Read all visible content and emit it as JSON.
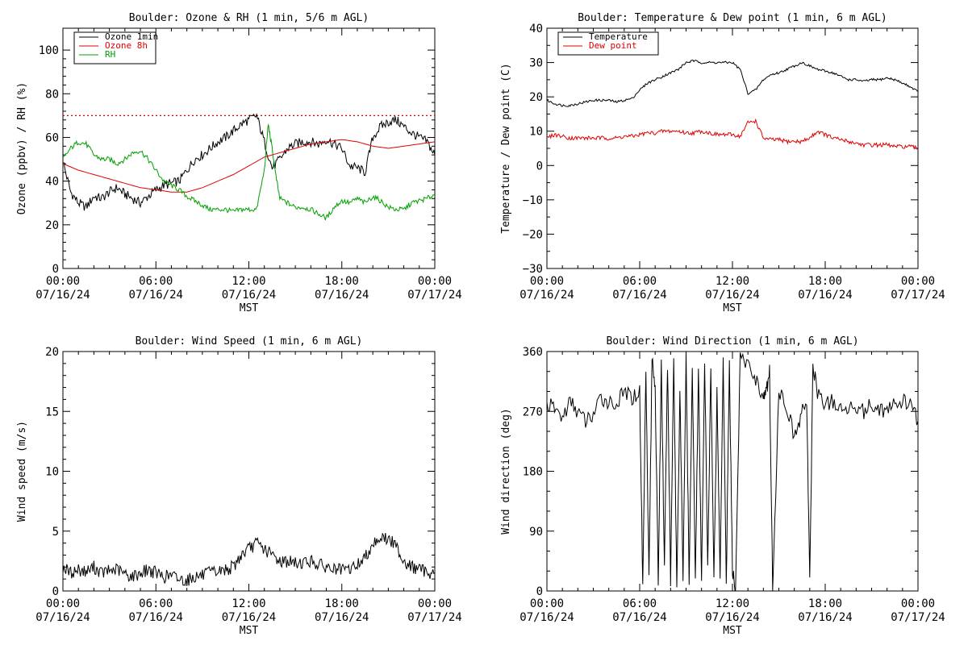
{
  "chart_data": [
    {
      "type": "line",
      "title": "Boulder: Ozone & RH (1 min, 5/6 m AGL)",
      "xlabel": "MST",
      "ylabel": "Ozone (ppbv) / RH (%)",
      "xlim": [
        "07/16/24 00:00",
        "07/17/24 00:00"
      ],
      "ylim": [
        0,
        110
      ],
      "x_ticks": [
        [
          "00:00",
          "07/16/24"
        ],
        [
          "06:00",
          "07/16/24"
        ],
        [
          "12:00",
          "07/16/24"
        ],
        [
          "18:00",
          "07/16/24"
        ],
        [
          "00:00",
          "07/17/24"
        ]
      ],
      "y_ticks": [
        "0",
        "20",
        "40",
        "60",
        "80",
        "100"
      ],
      "legend_position": "top-left",
      "reference_line": {
        "y": 70,
        "style": "dotted",
        "color": "#e00000"
      },
      "series": [
        {
          "name": "Ozone 1min",
          "color": "#000000",
          "x_hours": [
            0,
            0.5,
            1,
            1.5,
            2,
            2.5,
            3,
            3.5,
            4,
            4.5,
            5,
            5.5,
            6,
            6.5,
            7,
            7.5,
            8,
            8.5,
            9,
            9.5,
            10,
            10.5,
            11,
            11.5,
            12,
            12.5,
            13,
            13.5,
            14,
            14.5,
            15,
            15.5,
            16,
            16.5,
            17,
            17.5,
            18,
            18.5,
            19,
            19.5,
            20,
            20.5,
            21,
            21.5,
            22,
            22.5,
            23,
            23.5,
            24
          ],
          "values": [
            49,
            35,
            30,
            28,
            33,
            32,
            35,
            37,
            34,
            32,
            30,
            33,
            36,
            38,
            39,
            40,
            45,
            50,
            52,
            55,
            58,
            60,
            63,
            66,
            68,
            70,
            58,
            46,
            50,
            55,
            57,
            58,
            58,
            57,
            59,
            57,
            55,
            47,
            46,
            44,
            60,
            65,
            67,
            68,
            65,
            62,
            60,
            58,
            52
          ]
        },
        {
          "name": "Ozone 8h",
          "color": "#e00000",
          "x_hours": [
            0,
            1,
            2,
            3,
            4,
            5,
            6,
            7,
            8,
            9,
            10,
            11,
            12,
            13,
            14,
            15,
            16,
            17,
            18,
            19,
            20,
            21,
            22,
            23,
            24
          ],
          "values": [
            48,
            45,
            43,
            41,
            39,
            37,
            36,
            35,
            35,
            37,
            40,
            43,
            47,
            51,
            53,
            55,
            57,
            58,
            59,
            58,
            56,
            55,
            56,
            57,
            58
          ]
        },
        {
          "name": "RH",
          "color": "#00a000",
          "x_hours": [
            0,
            0.5,
            1,
            1.5,
            2,
            2.5,
            3,
            3.5,
            4,
            4.5,
            5,
            5.5,
            6,
            6.5,
            7,
            7.5,
            8,
            8.5,
            9,
            9.5,
            10,
            10.5,
            11,
            11.5,
            12,
            12.5,
            13,
            13.25,
            13.5,
            13.75,
            14,
            14.5,
            15,
            15.5,
            16,
            16.5,
            17,
            17.5,
            18,
            18.5,
            19,
            19.5,
            20,
            20.5,
            21,
            21.5,
            22,
            22.5,
            23,
            23.5,
            24
          ],
          "values": [
            50,
            55,
            58,
            57,
            52,
            50,
            50,
            48,
            50,
            53,
            54,
            50,
            45,
            40,
            38,
            36,
            33,
            31,
            29,
            27,
            27,
            27,
            26,
            27,
            27,
            27,
            45,
            66,
            55,
            42,
            32,
            30,
            28,
            28,
            27,
            25,
            23,
            28,
            31,
            30,
            32,
            30,
            33,
            31,
            28,
            27,
            27,
            30,
            31,
            32,
            34
          ]
        }
      ]
    },
    {
      "type": "line",
      "title": "Boulder: Temperature & Dew point (1 min, 6 m AGL)",
      "xlabel": "MST",
      "ylabel": "Temperature / Dew point (C)",
      "xlim": [
        "07/16/24 00:00",
        "07/17/24 00:00"
      ],
      "ylim": [
        -30,
        40
      ],
      "x_ticks": [
        [
          "00:00",
          "07/16/24"
        ],
        [
          "06:00",
          "07/16/24"
        ],
        [
          "12:00",
          "07/16/24"
        ],
        [
          "18:00",
          "07/16/24"
        ],
        [
          "00:00",
          "07/17/24"
        ]
      ],
      "y_ticks": [
        "−30",
        "−20",
        "−10",
        "0",
        "10",
        "20",
        "30",
        "40"
      ],
      "legend_position": "top-left",
      "series": [
        {
          "name": "Temperature",
          "color": "#000000",
          "x_hours": [
            0,
            0.5,
            1,
            1.5,
            2,
            2.5,
            3,
            3.5,
            4,
            4.5,
            5,
            5.5,
            6,
            6.5,
            7,
            7.5,
            8,
            8.5,
            9,
            9.5,
            10,
            10.5,
            11,
            11.5,
            12,
            12.5,
            13,
            13.5,
            14,
            14.5,
            15,
            15.5,
            16,
            16.5,
            17,
            17.5,
            18,
            18.5,
            19,
            19.5,
            20,
            20.5,
            21,
            21.5,
            22,
            22.5,
            23,
            23.5,
            24
          ],
          "values": [
            19,
            18,
            17.5,
            17.5,
            18,
            18.5,
            19,
            19,
            19,
            18.5,
            19,
            19.5,
            22,
            24,
            25,
            26,
            27,
            28,
            30,
            30.5,
            30,
            30,
            30,
            30,
            30,
            28,
            21,
            22,
            25,
            26.5,
            27,
            28,
            29,
            30,
            29,
            28,
            27.5,
            27,
            26,
            25,
            25,
            24.5,
            25,
            25,
            25.5,
            25,
            24,
            23,
            21.5
          ]
        },
        {
          "name": "Dew point",
          "color": "#e00000",
          "x_hours": [
            0,
            0.5,
            1,
            1.5,
            2,
            2.5,
            3,
            3.5,
            4,
            4.5,
            5,
            5.5,
            6,
            6.5,
            7,
            7.5,
            8,
            8.5,
            9,
            9.5,
            10,
            10.5,
            11,
            11.5,
            12,
            12.5,
            13,
            13.5,
            14,
            14.5,
            15,
            15.5,
            16,
            16.5,
            17,
            17.5,
            18,
            18.5,
            19,
            19.5,
            20,
            20.5,
            21,
            21.5,
            22,
            22.5,
            23,
            23.5,
            24
          ],
          "values": [
            8,
            9,
            8.5,
            8,
            8,
            8,
            8,
            8,
            8,
            8,
            8.5,
            8.5,
            9,
            9.5,
            9.5,
            10,
            10,
            10,
            9.5,
            9.5,
            10,
            9.5,
            9,
            9,
            9,
            8.5,
            12.5,
            13,
            8,
            7.5,
            7.5,
            7,
            7,
            7,
            8,
            10,
            9,
            8,
            7.5,
            7,
            6.5,
            6,
            6,
            6,
            6,
            5.5,
            5.5,
            5.5,
            5
          ]
        }
      ]
    },
    {
      "type": "line",
      "title": "Boulder: Wind Speed (1 min, 6 m AGL)",
      "xlabel": "MST",
      "ylabel": "Wind speed (m/s)",
      "xlim": [
        "07/16/24 00:00",
        "07/17/24 00:00"
      ],
      "ylim": [
        0,
        20
      ],
      "x_ticks": [
        [
          "00:00",
          "07/16/24"
        ],
        [
          "06:00",
          "07/16/24"
        ],
        [
          "12:00",
          "07/16/24"
        ],
        [
          "18:00",
          "07/16/24"
        ],
        [
          "00:00",
          "07/17/24"
        ]
      ],
      "y_ticks": [
        "0",
        "5",
        "10",
        "15",
        "20"
      ],
      "series": [
        {
          "name": "",
          "color": "#000000",
          "x_hours": [
            0,
            0.5,
            1,
            1.5,
            2,
            2.5,
            3,
            3.5,
            4,
            4.5,
            5,
            5.5,
            6,
            6.5,
            7,
            7.5,
            8,
            8.5,
            9,
            9.5,
            10,
            10.5,
            11,
            11.5,
            12,
            12.5,
            13,
            13.5,
            14,
            14.5,
            15,
            15.5,
            16,
            16.5,
            17,
            17.5,
            18,
            18.5,
            19,
            19.5,
            20,
            20.5,
            21,
            21.5,
            22,
            22.5,
            23,
            23.5,
            24
          ],
          "values": [
            2,
            1.5,
            1.8,
            1.6,
            2,
            1.5,
            1.7,
            1.8,
            1.4,
            1.2,
            1.5,
            1.8,
            1.5,
            1.2,
            1.3,
            1,
            0.9,
            1.2,
            1.3,
            1.5,
            1.6,
            1.8,
            2,
            3,
            3.5,
            4,
            3.5,
            3,
            2.5,
            2.5,
            2.3,
            2.4,
            2.5,
            2.2,
            2,
            1.8,
            1.7,
            1.8,
            2.2,
            2.8,
            4,
            4.5,
            4.3,
            3.8,
            2.5,
            2,
            1.8,
            1.6,
            1.5
          ]
        }
      ]
    },
    {
      "type": "line",
      "title": "Boulder: Wind Direction (1 min, 6 m AGL)",
      "xlabel": "MST",
      "ylabel": "Wind direction (deg)",
      "xlim": [
        "07/16/24 00:00",
        "07/17/24 00:00"
      ],
      "ylim": [
        0,
        360
      ],
      "x_ticks": [
        [
          "00:00",
          "07/16/24"
        ],
        [
          "06:00",
          "07/16/24"
        ],
        [
          "12:00",
          "07/16/24"
        ],
        [
          "18:00",
          "07/16/24"
        ],
        [
          "00:00",
          "07/17/24"
        ]
      ],
      "y_ticks": [
        "0",
        "90",
        "180",
        "270",
        "360"
      ],
      "series": [
        {
          "name": "",
          "color": "#000000",
          "x_hours": [
            0,
            0.5,
            1,
            1.5,
            2,
            2.5,
            3,
            3.5,
            4,
            4.5,
            5,
            5.5,
            6,
            6.2,
            6.4,
            6.6,
            6.8,
            7,
            7.2,
            7.4,
            7.6,
            7.8,
            8,
            8.2,
            8.4,
            8.6,
            8.8,
            9,
            9.2,
            9.4,
            9.6,
            9.8,
            10,
            10.2,
            10.4,
            10.6,
            10.8,
            11,
            11.2,
            11.4,
            11.6,
            11.8,
            12,
            12.2,
            12.5,
            13,
            13.5,
            14,
            14.2,
            14.4,
            14.6,
            15,
            15.5,
            16,
            16.4,
            16.8,
            17,
            17.2,
            17.5,
            18,
            18.5,
            19,
            19.5,
            20,
            20.5,
            21,
            21.5,
            22,
            22.5,
            23,
            23.5,
            24
          ],
          "values": [
            280,
            275,
            260,
            285,
            270,
            255,
            265,
            290,
            285,
            280,
            300,
            290,
            300,
            5,
            340,
            20,
            350,
            310,
            10,
            345,
            30,
            340,
            15,
            355,
            5,
            300,
            20,
            350,
            10,
            340,
            20,
            330,
            10,
            350,
            30,
            340,
            15,
            300,
            20,
            355,
            10,
            345,
            25,
            5,
            350,
            340,
            320,
            290,
            300,
            330,
            5,
            300,
            280,
            230,
            260,
            290,
            10,
            340,
            300,
            280,
            285,
            270,
            275,
            280,
            270,
            280,
            275,
            270,
            280,
            285,
            280,
            255
          ]
        }
      ]
    }
  ]
}
